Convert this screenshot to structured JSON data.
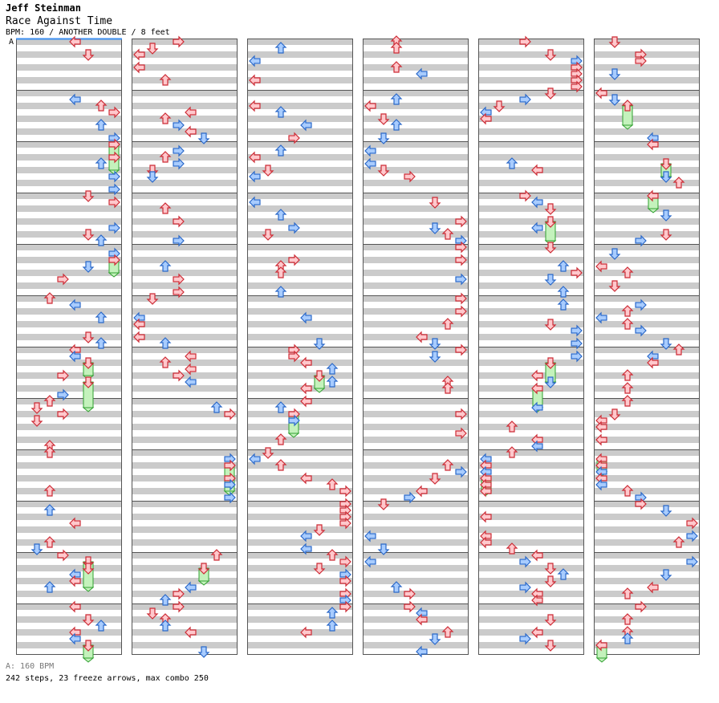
{
  "song": {
    "artist": "Jeff Steinman",
    "title": "Race Against Time",
    "meta": "BPM: 160 / ANOTHER DOUBLE / 8 feet"
  },
  "bpm_marker": "A",
  "footer": {
    "bpm_legend": "A: 160 BPM",
    "stats": "242 steps, 23 freeze arrows, max combo 250"
  },
  "colors": {
    "background": "#ffffff",
    "band": "#cbcbcb",
    "border": "#555555",
    "marker_line": "#3a8ef0",
    "quarter_fill": "#ffc8cc",
    "quarter_stroke": "#cc2a34",
    "eighth_fill": "#a8ccff",
    "eighth_stroke": "#2a68c8",
    "freeze_fill": "#c4f2bc",
    "freeze_stroke": "#30a030"
  },
  "chart": {
    "columns": 6,
    "measures_per_column": 12,
    "lanes": 8,
    "beats_per_measure": 4
  }
}
